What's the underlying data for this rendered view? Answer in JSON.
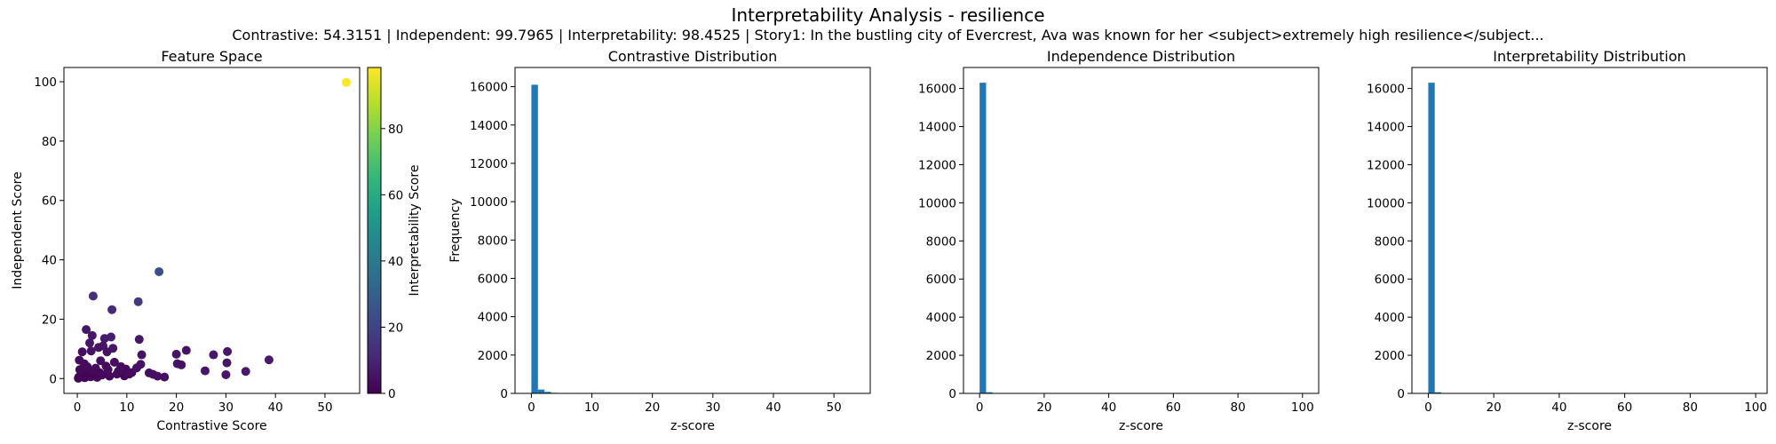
{
  "figure": {
    "title": "Interpretability Analysis - resilience",
    "subtitle": "Contrastive: 54.3151 | Independent: 99.7965 | Interpretability: 98.4525 | Story1: In the bustling city of Evercrest, Ava was known for her <subject>extremely high resilience</subject..."
  },
  "colors": {
    "bar": "#1f77b4",
    "viridis": [
      "#440154",
      "#482878",
      "#3e4989",
      "#31688e",
      "#26828e",
      "#1f9e89",
      "#35b779",
      "#6ece58",
      "#b5de2b",
      "#fde725"
    ]
  },
  "chart_data": [
    {
      "type": "scatter",
      "title": "Feature Space",
      "xlabel": "Contrastive Score",
      "ylabel": "Independent Score",
      "xlim": [
        -2.7,
        57.0
      ],
      "ylim": [
        -5.0,
        104.8
      ],
      "xticks": [
        0,
        10,
        20,
        30,
        40,
        50
      ],
      "yticks": [
        0,
        20,
        40,
        60,
        80,
        100
      ],
      "colorbar": {
        "label": "Interpretability Score",
        "range": [
          0,
          98.45
        ],
        "ticks": [
          0,
          20,
          40,
          60,
          80
        ]
      },
      "points": [
        [
          54.3,
          99.8,
          98.4
        ],
        [
          16.5,
          36.0,
          24.0
        ],
        [
          3.2,
          27.8,
          13.0
        ],
        [
          12.3,
          25.9,
          16.0
        ],
        [
          7.0,
          23.2,
          12.0
        ],
        [
          1.8,
          16.5,
          6.0
        ],
        [
          3.0,
          14.5,
          6.0
        ],
        [
          5.5,
          13.5,
          7.0
        ],
        [
          6.8,
          14.0,
          8.0
        ],
        [
          12.5,
          13.2,
          6.0
        ],
        [
          2.5,
          12.0,
          6.0
        ],
        [
          5.2,
          11.0,
          6.0
        ],
        [
          4.3,
          10.5,
          5.0
        ],
        [
          7.2,
          10.2,
          6.0
        ],
        [
          1.0,
          9.0,
          4.0
        ],
        [
          2.8,
          9.3,
          5.0
        ],
        [
          6.0,
          9.0,
          5.0
        ],
        [
          22.0,
          9.5,
          5.0
        ],
        [
          30.3,
          9.1,
          6.0
        ],
        [
          20.0,
          8.2,
          5.0
        ],
        [
          27.5,
          8.0,
          6.0
        ],
        [
          13.0,
          8.0,
          5.0
        ],
        [
          38.7,
          6.3,
          7.0
        ],
        [
          30.2,
          5.3,
          6.0
        ],
        [
          20.2,
          5.0,
          5.0
        ],
        [
          21.0,
          4.6,
          5.0
        ],
        [
          12.8,
          4.8,
          5.0
        ],
        [
          7.5,
          5.5,
          4.0
        ],
        [
          4.7,
          6.0,
          4.0
        ],
        [
          0.4,
          6.2,
          3.0
        ],
        [
          2.0,
          4.0,
          3.0
        ],
        [
          3.7,
          3.5,
          3.0
        ],
        [
          6.2,
          3.0,
          3.0
        ],
        [
          8.3,
          2.5,
          3.0
        ],
        [
          9.8,
          3.2,
          3.0
        ],
        [
          11.0,
          2.0,
          3.0
        ],
        [
          25.8,
          2.6,
          6.0
        ],
        [
          34.0,
          2.4,
          7.0
        ],
        [
          30.0,
          1.3,
          6.0
        ],
        [
          16.2,
          0.8,
          4.0
        ],
        [
          17.6,
          0.5,
          4.0
        ],
        [
          15.3,
          1.4,
          4.0
        ],
        [
          14.5,
          1.9,
          4.0
        ],
        [
          1.2,
          2.0,
          2.0
        ],
        [
          2.3,
          1.5,
          2.0
        ],
        [
          3.5,
          1.0,
          2.0
        ],
        [
          5.0,
          1.2,
          2.0
        ],
        [
          6.5,
          0.8,
          2.0
        ],
        [
          8.0,
          1.5,
          2.0
        ],
        [
          9.5,
          0.9,
          2.0
        ],
        [
          0.3,
          0.5,
          1.0
        ],
        [
          1.5,
          0.3,
          1.0
        ],
        [
          2.7,
          0.6,
          1.0
        ],
        [
          4.0,
          0.4,
          1.0
        ],
        [
          0.8,
          1.2,
          1.0
        ],
        [
          0.5,
          3.0,
          2.0
        ],
        [
          1.4,
          5.0,
          3.0
        ],
        [
          3.0,
          2.5,
          2.0
        ],
        [
          4.5,
          2.0,
          2.0
        ],
        [
          10.5,
          1.5,
          3.0
        ],
        [
          12.0,
          3.6,
          4.0
        ],
        [
          0.2,
          0.1,
          1.0
        ],
        [
          1.8,
          0.9,
          1.0
        ],
        [
          5.8,
          4.2,
          3.0
        ],
        [
          8.8,
          4.0,
          3.0
        ]
      ]
    },
    {
      "type": "bar",
      "title": "Contrastive Distribution",
      "xlabel": "z-score",
      "ylabel": "Frequency",
      "xlim": [
        -2.7,
        56.0
      ],
      "ylim": [
        0,
        17000
      ],
      "xticks": [
        0,
        10,
        20,
        30,
        40,
        50
      ],
      "yticks": [
        0,
        2000,
        4000,
        6000,
        8000,
        10000,
        12000,
        14000,
        16000
      ],
      "bin_start": 0,
      "bin_width": 1.086,
      "values": [
        16100,
        200,
        80,
        30,
        15,
        8,
        5,
        3,
        2,
        1
      ]
    },
    {
      "type": "bar",
      "title": "Independence Distribution",
      "xlabel": "z-score",
      "ylabel": "",
      "xlim": [
        -5.0,
        105.0
      ],
      "ylim": [
        0,
        17100
      ],
      "xticks": [
        0,
        20,
        40,
        60,
        80,
        100
      ],
      "yticks": [
        0,
        2000,
        4000,
        6000,
        8000,
        10000,
        12000,
        14000,
        16000
      ],
      "bin_start": 0,
      "bin_width": 2.0,
      "values": [
        16300,
        60,
        15,
        5,
        2,
        1
      ]
    },
    {
      "type": "bar",
      "title": "Interpretability Distribution",
      "xlabel": "z-score",
      "ylabel": "",
      "xlim": [
        -5.0,
        103.5
      ],
      "ylim": [
        0,
        17100
      ],
      "xticks": [
        0,
        20,
        40,
        60,
        80,
        100
      ],
      "yticks": [
        0,
        2000,
        4000,
        6000,
        8000,
        10000,
        12000,
        14000,
        16000
      ],
      "bin_start": 0,
      "bin_width": 1.97,
      "values": [
        16300,
        60,
        15,
        5,
        2,
        1
      ]
    }
  ]
}
